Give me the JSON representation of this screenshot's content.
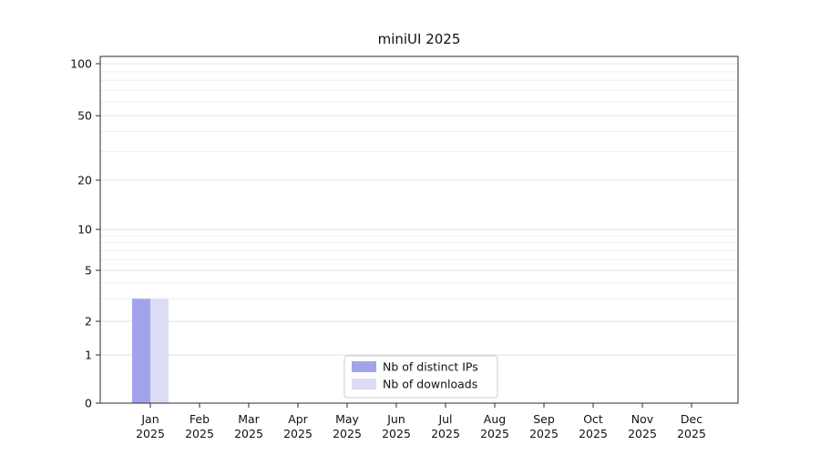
{
  "title": "miniUI 2025",
  "chart_data": {
    "type": "bar",
    "title": "miniUI 2025",
    "categories": [
      "Jan",
      "Feb",
      "Mar",
      "Apr",
      "May",
      "Jun",
      "Jul",
      "Aug",
      "Sep",
      "Oct",
      "Nov",
      "Dec"
    ],
    "year_label": "2025",
    "series": [
      {
        "name": "Nb of distinct IPs",
        "color": "#a3a3ec",
        "values": [
          3,
          0,
          0,
          0,
          0,
          0,
          0,
          0,
          0,
          0,
          0,
          0
        ]
      },
      {
        "name": "Nb of downloads",
        "color": "#dcdcf7",
        "values": [
          3,
          0,
          0,
          0,
          0,
          0,
          0,
          0,
          0,
          0,
          0,
          0
        ]
      }
    ],
    "xlabel": "",
    "ylabel": "",
    "yscale": "symlog",
    "yticks": [
      0,
      1,
      2,
      5,
      10,
      20,
      50,
      100
    ],
    "minor_yticks": [
      3,
      4,
      6,
      7,
      8,
      9,
      30,
      40,
      60,
      70,
      80,
      90
    ],
    "ylim": [
      0,
      105
    ],
    "grid": "horizontal",
    "legend_position": "lower center",
    "colors": {
      "axis": "#2b2b2b",
      "tick_label": "#111111",
      "grid_major": "#e0e0e0",
      "grid_minor": "#eeeeee",
      "legend_border": "#cccccc",
      "legend_bg": "#ffffff"
    }
  }
}
